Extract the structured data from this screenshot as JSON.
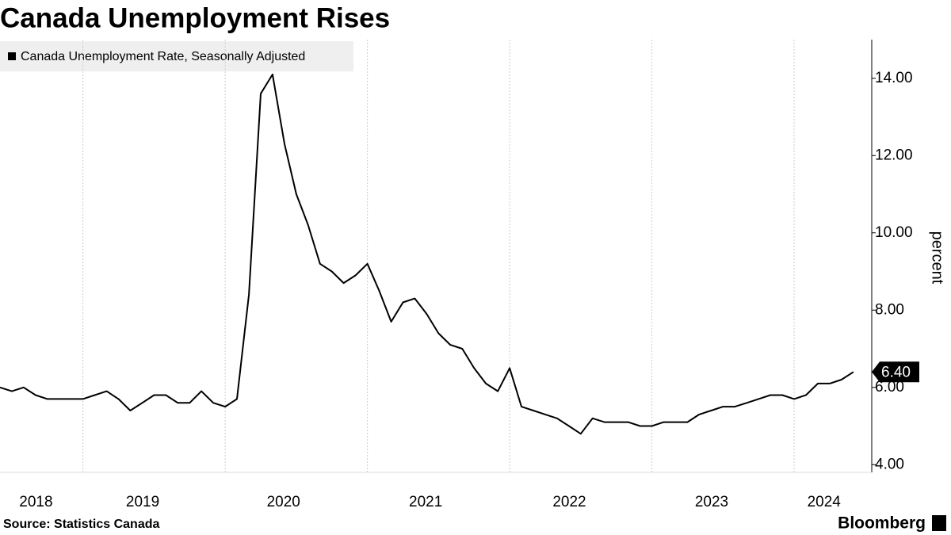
{
  "chart_data": {
    "type": "line",
    "title": "Canada Unemployment Rises",
    "y_label": "percent",
    "source": "Source: Statistics Canada",
    "brand": "Bloomberg",
    "x": [
      2018.417,
      2018.5,
      2018.583,
      2018.667,
      2018.75,
      2018.833,
      2018.917,
      2019,
      2019.083,
      2019.167,
      2019.25,
      2019.333,
      2019.417,
      2019.5,
      2019.583,
      2019.667,
      2019.75,
      2019.833,
      2019.917,
      2020,
      2020.083,
      2020.167,
      2020.25,
      2020.333,
      2020.417,
      2020.5,
      2020.583,
      2020.667,
      2020.75,
      2020.833,
      2020.917,
      2021,
      2021.083,
      2021.167,
      2021.25,
      2021.333,
      2021.417,
      2021.5,
      2021.583,
      2021.667,
      2021.75,
      2021.833,
      2021.917,
      2022,
      2022.083,
      2022.167,
      2022.25,
      2022.333,
      2022.417,
      2022.5,
      2022.583,
      2022.667,
      2022.75,
      2022.833,
      2022.917,
      2023,
      2023.083,
      2023.167,
      2023.25,
      2023.333,
      2023.417,
      2023.5,
      2023.583,
      2023.667,
      2023.75,
      2023.833,
      2023.917,
      2024,
      2024.083,
      2024.167,
      2024.25,
      2024.333,
      2024.417
    ],
    "series": [
      {
        "name": "Canada Unemployment Rate, Seasonally Adjusted",
        "color": "#000000",
        "values": [
          6.0,
          5.9,
          6.0,
          5.8,
          5.7,
          5.7,
          5.7,
          5.7,
          5.8,
          5.9,
          5.7,
          5.4,
          5.6,
          5.8,
          5.8,
          5.6,
          5.6,
          5.9,
          5.6,
          5.5,
          5.7,
          8.4,
          13.6,
          14.1,
          12.3,
          11.0,
          10.2,
          9.2,
          9.0,
          8.7,
          8.9,
          9.2,
          8.5,
          7.7,
          8.2,
          8.3,
          7.9,
          7.4,
          7.1,
          7.0,
          6.5,
          6.1,
          5.9,
          6.5,
          5.5,
          5.4,
          5.3,
          5.2,
          5.0,
          4.8,
          5.2,
          5.1,
          5.1,
          5.1,
          5.0,
          5.0,
          5.1,
          5.1,
          5.1,
          5.3,
          5.4,
          5.5,
          5.5,
          5.6,
          5.7,
          5.8,
          5.8,
          5.7,
          5.8,
          6.1,
          6.1,
          6.2,
          6.4
        ],
        "value_labels": [
          null,
          null,
          null,
          null,
          null,
          null,
          null,
          null,
          null,
          null,
          null,
          null,
          null,
          null,
          null,
          null,
          null,
          null,
          null,
          null,
          null,
          null,
          null,
          null,
          null,
          null,
          null,
          null,
          null,
          null,
          null,
          null,
          null,
          null,
          null,
          null,
          null,
          null,
          null,
          null,
          null,
          null,
          null,
          null,
          null,
          null,
          null,
          null,
          null,
          null,
          null,
          null,
          null,
          null,
          null,
          null,
          null,
          null,
          null,
          null,
          null,
          null,
          null,
          null,
          null,
          null,
          null,
          null,
          null,
          null,
          null,
          null,
          "6.40"
        ]
      }
    ],
    "xlim": [
      2018.417,
      2024.49
    ],
    "xticks": [
      {
        "value": 2018.67,
        "label": "2018"
      },
      {
        "value": 2019.42,
        "label": "2019"
      },
      {
        "value": 2020.41,
        "label": "2020"
      },
      {
        "value": 2021.41,
        "label": "2021"
      },
      {
        "value": 2022.42,
        "label": "2022"
      },
      {
        "value": 2023.42,
        "label": "2023"
      },
      {
        "value": 2024.21,
        "label": "2024"
      }
    ],
    "xgrid": [
      2019,
      2020,
      2021,
      2022,
      2023,
      2024
    ],
    "ylim": [
      3.8,
      15.0
    ],
    "yticks": [
      {
        "value": 4,
        "label": "4.00"
      },
      {
        "value": 6,
        "label": "6.00"
      },
      {
        "value": 8,
        "label": "8.00"
      },
      {
        "value": 10,
        "label": "10.00"
      },
      {
        "value": 12,
        "label": "12.00"
      },
      {
        "value": 14,
        "label": "14.00"
      }
    ],
    "grid": true,
    "legend": "top-left"
  }
}
